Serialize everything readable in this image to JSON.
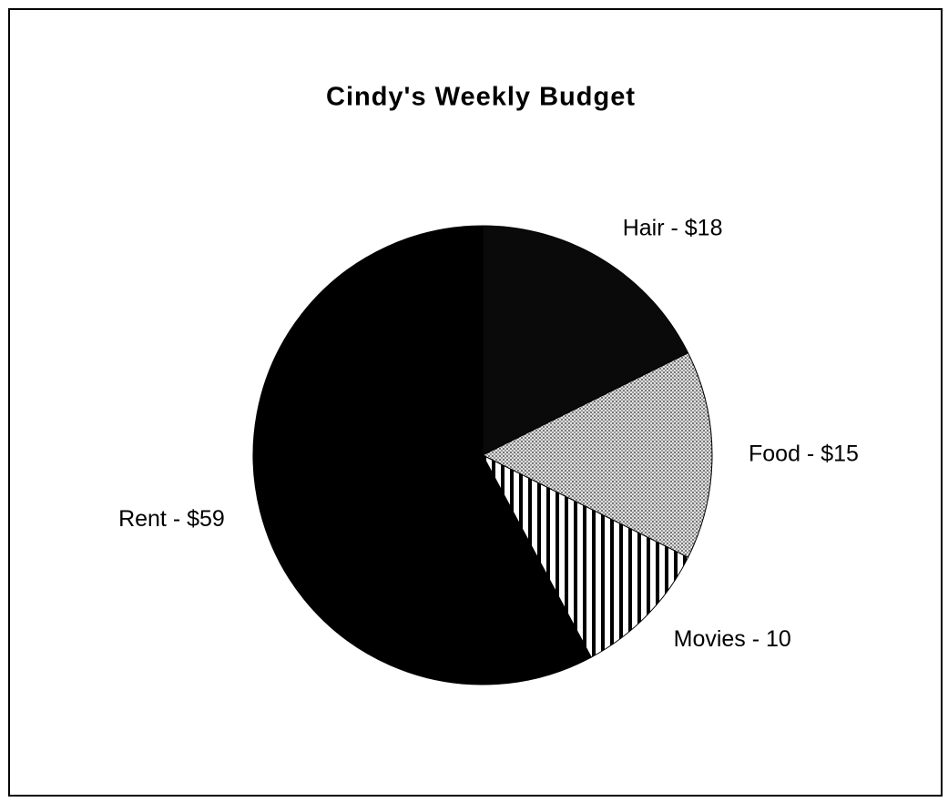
{
  "chart_data": {
    "type": "pie",
    "title": "Cindy's Weekly Budget",
    "values": [
      18,
      15,
      10,
      59
    ],
    "value_labels": [
      "Hair - $18",
      "Food - $15",
      "Movies - 10",
      "Rent - $59"
    ],
    "colors": [
      "#0a0a0a",
      "#bdbdbd",
      "#ffffff",
      "#000000"
    ],
    "patterns": [
      "solid",
      "dots",
      "vertical-lines",
      "solid"
    ]
  }
}
